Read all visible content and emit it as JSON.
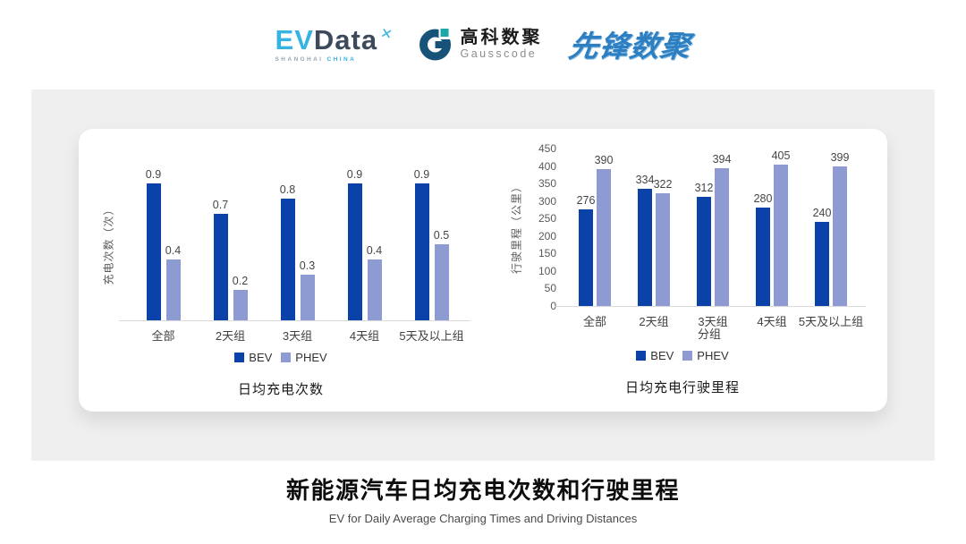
{
  "logos": {
    "evdata": {
      "part1": "EV",
      "part2": "Data",
      "mark": "✕",
      "sub1": "SHANGHAI",
      "sub2": "CHINA"
    },
    "gausscode": {
      "name_cn": "高科数聚",
      "name_en": "Gausscode"
    },
    "pioneer": {
      "name": "先锋数聚"
    }
  },
  "colors": {
    "bev": "#0b42a9",
    "phev": "#8e9ad2",
    "axis_line": "#d9d9d9",
    "panel_gray": "#efefef"
  },
  "chart_data": [
    {
      "type": "bar",
      "title": "日均充电次数",
      "ylabel": "充电次数（次）",
      "xlabel": "",
      "categories": [
        "全部",
        "2天组",
        "3天组",
        "4天组",
        "5天及以上组"
      ],
      "series": [
        {
          "name": "BEV",
          "color": "#0b42a9",
          "values": [
            0.9,
            0.7,
            0.8,
            0.9,
            0.9
          ]
        },
        {
          "name": "PHEV",
          "color": "#8e9ad2",
          "values": [
            0.4,
            0.2,
            0.3,
            0.4,
            0.5
          ]
        }
      ],
      "ylim": [
        0,
        1.0
      ],
      "ytick_step": null,
      "grid": false,
      "value_labels": true,
      "legend_position": "bottom"
    },
    {
      "type": "bar",
      "title": "日均充电行驶里程",
      "ylabel": "行驶里程（公里）",
      "xlabel": "分组",
      "categories": [
        "全部",
        "2天组",
        "3天组",
        "4天组",
        "5天及以上组"
      ],
      "series": [
        {
          "name": "BEV",
          "color": "#0b42a9",
          "values": [
            276,
            334,
            312,
            280,
            240
          ]
        },
        {
          "name": "PHEV",
          "color": "#8e9ad2",
          "values": [
            390,
            322,
            394,
            405,
            399
          ]
        }
      ],
      "ylim": [
        0,
        450
      ],
      "ytick_step": 50,
      "grid": false,
      "value_labels": true,
      "legend_position": "bottom"
    }
  ],
  "footer": {
    "title": "新能源汽车日均充电次数和行驶里程",
    "subtitle": "EV for Daily Average Charging Times and Driving Distances"
  }
}
